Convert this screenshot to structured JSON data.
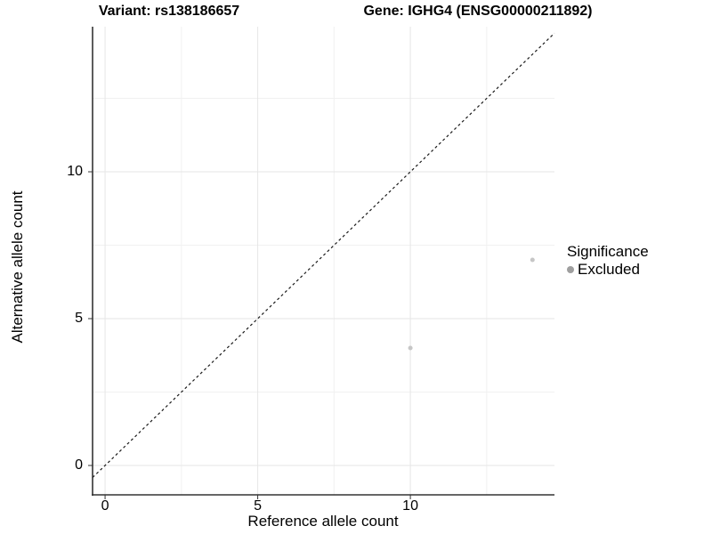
{
  "chart_data": {
    "type": "scatter",
    "title_left": "Variant: rs138186657",
    "title_right": "Gene: IGHG4 (ENSG00000211892)",
    "xlabel": "Reference allele count",
    "ylabel": "Alternative allele count",
    "xlim": [
      -0.41,
      14.72
    ],
    "ylim": [
      -1.0,
      14.94
    ],
    "x_major_ticks": [
      0,
      5,
      10
    ],
    "y_major_ticks": [
      0,
      5,
      10
    ],
    "x_minor_gridlines": [
      2.5,
      7.5,
      12.5
    ],
    "y_minor_gridlines": [
      2.5,
      7.5,
      12.5
    ],
    "grid": true,
    "legend_position": "right",
    "series": [
      {
        "name": "Excluded",
        "color": "#c6c6c6",
        "point_radius": 2.5,
        "points": [
          {
            "x": 10,
            "y": 4
          },
          {
            "x": 14,
            "y": 7
          }
        ]
      }
    ],
    "reference_line": {
      "type": "identity",
      "style": "dashed",
      "color": "#1a1a1a"
    }
  },
  "legend": {
    "title": "Significance",
    "items": [
      {
        "label": "Excluded",
        "key_color": "#9f9f9f"
      }
    ]
  },
  "colors": {
    "axis": "#333333",
    "grid_major": "#e6e6e6",
    "grid_minor": "#f1f1f1",
    "tick_mark": "#333333",
    "background": "#ffffff",
    "text": "#000000"
  }
}
